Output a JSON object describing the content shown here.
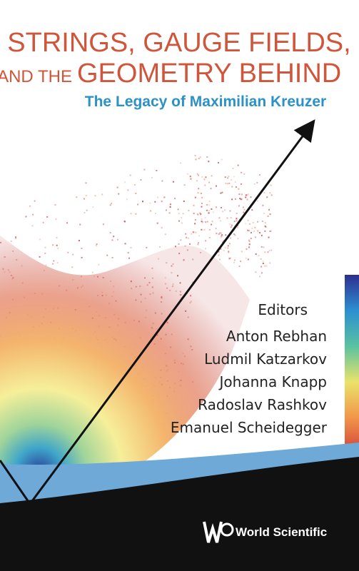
{
  "cover": {
    "title_line1": "STRINGS, GAUGE FIELDS,",
    "title_line2_prefix": "AND THE",
    "title_line2": "GEOMETRY BEHIND",
    "subtitle": "The Legacy of Maximilian Kreuzer",
    "editors_label": "Editors",
    "editors": [
      "Anton Rebhan",
      "Ludmil Katzarkov",
      "Johanna Knapp",
      "Radoslav Rashkov",
      "Emanuel Scheidegger"
    ],
    "publisher": "World Scientific"
  }
}
